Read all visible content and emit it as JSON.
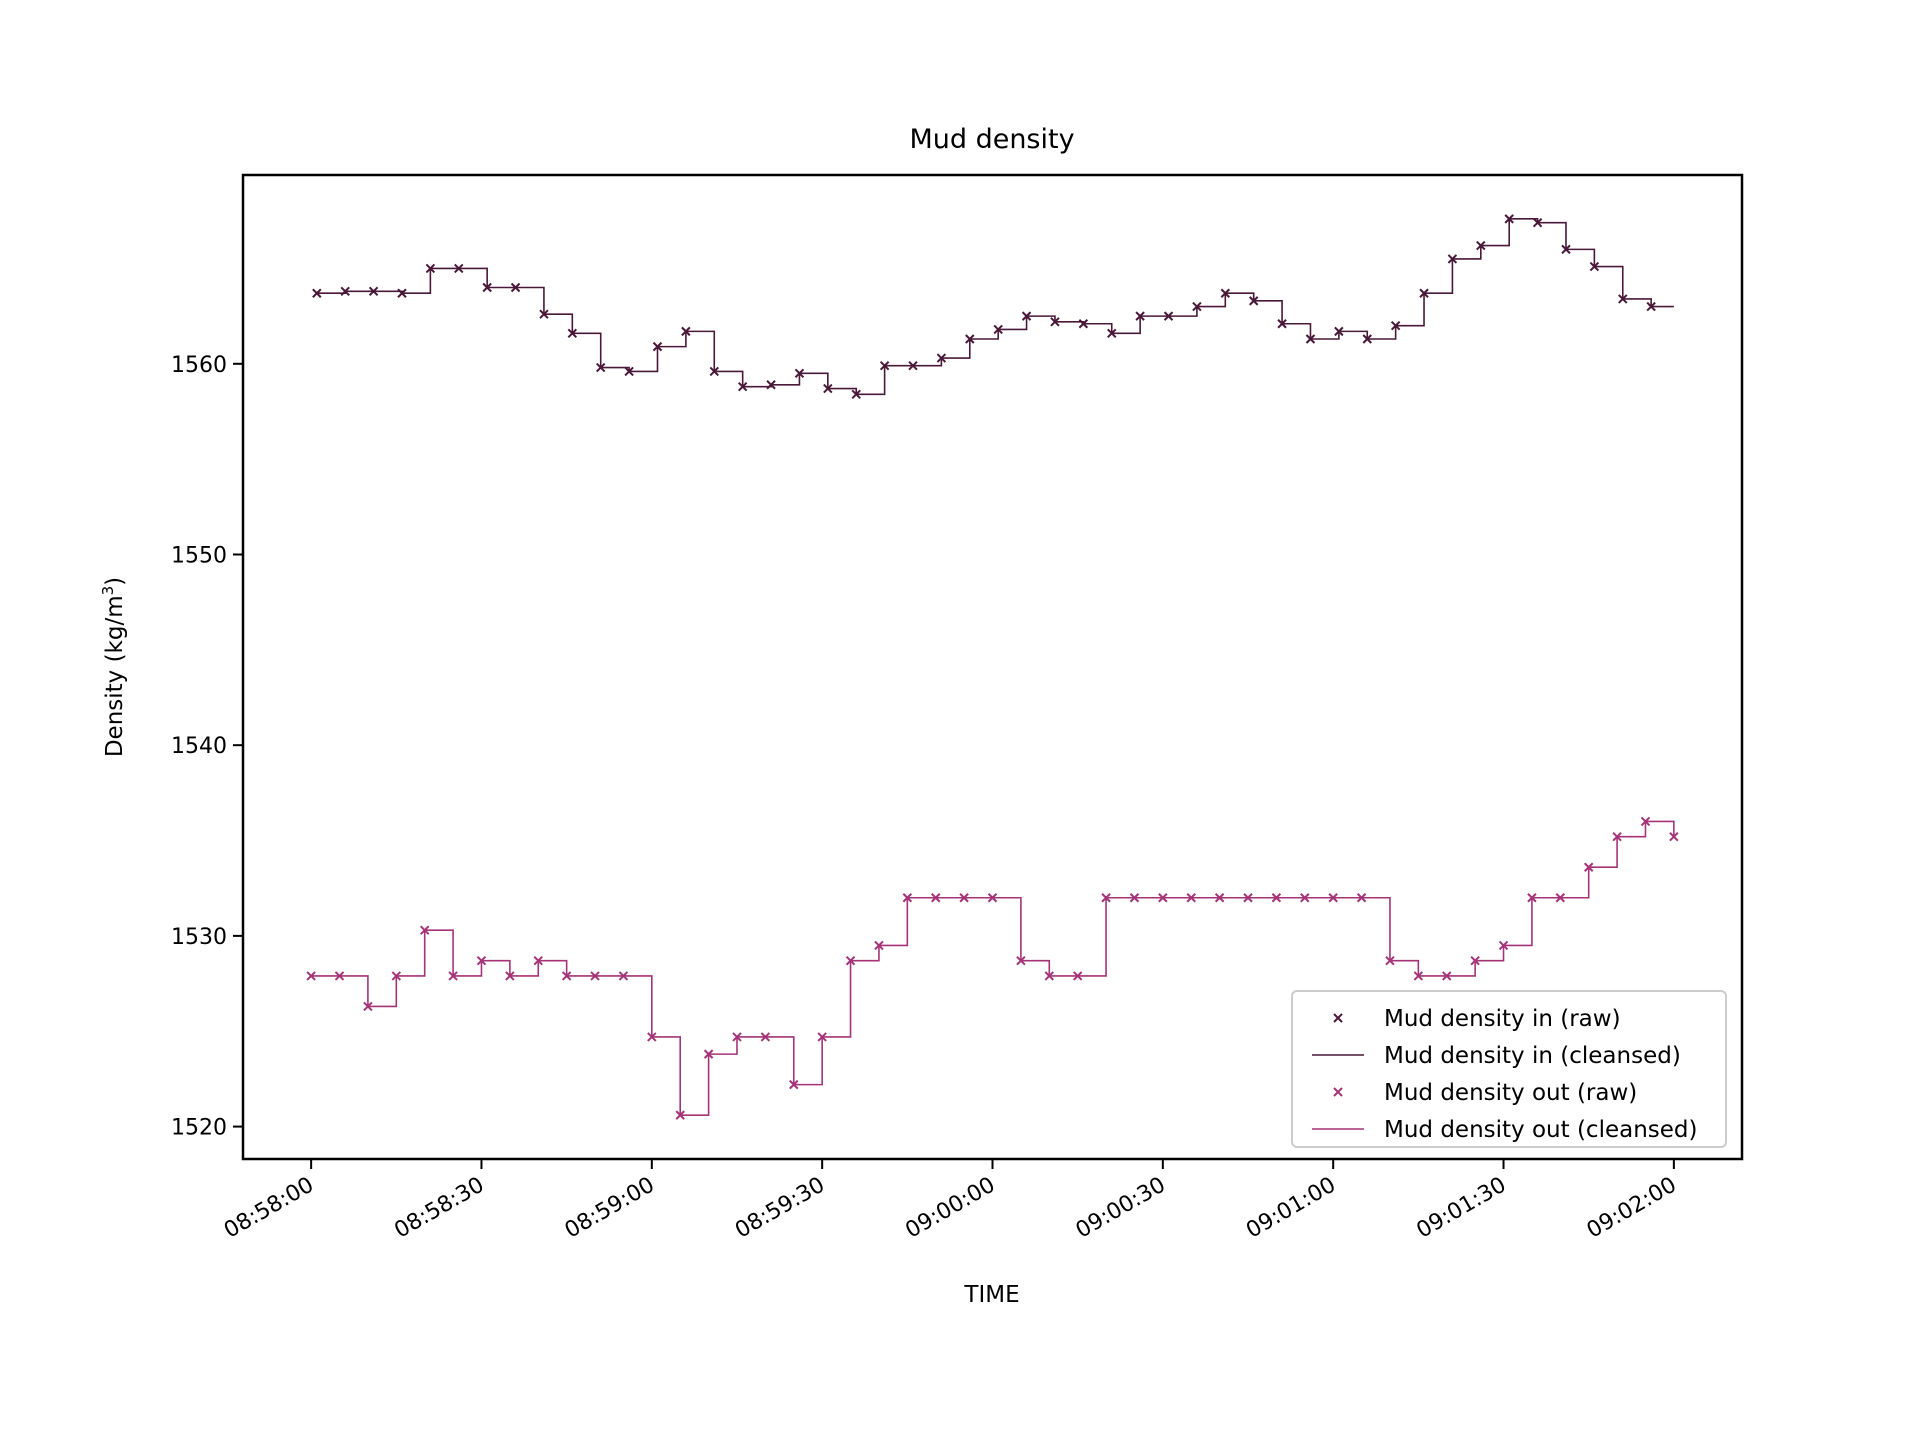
{
  "chart_data": {
    "type": "line",
    "title": "Mud density",
    "xlabel": "TIME",
    "ylabel": "Density (kg/m",
    "ylabel_superscript": "3",
    "ylabel_suffix": ")",
    "xlim": [
      "08:57:48",
      "09:02:12"
    ],
    "ylim": [
      1518.3,
      1569.9
    ],
    "x_ticks": [
      "08:58:00",
      "08:58:30",
      "08:59:00",
      "08:59:30",
      "09:00:00",
      "09:00:30",
      "09:01:00",
      "09:01:30",
      "09:02:00"
    ],
    "y_ticks": [
      1520,
      1530,
      1540,
      1550,
      1560
    ],
    "grid": false,
    "legend_position": "lower-right",
    "legend": [
      "Mud density in (raw)",
      "Mud density in (cleansed)",
      "Mud density out (raw)",
      "Mud density out (cleansed)"
    ],
    "series": [
      {
        "name": "Mud density in (raw)",
        "kind": "markers",
        "color": "#4a1838",
        "x": [
          "08:58:01",
          "08:58:06",
          "08:58:11",
          "08:58:16",
          "08:58:21",
          "08:58:26",
          "08:58:31",
          "08:58:36",
          "08:58:41",
          "08:58:46",
          "08:58:51",
          "08:58:56",
          "08:59:01",
          "08:59:06",
          "08:59:11",
          "08:59:16",
          "08:59:21",
          "08:59:26",
          "08:59:31",
          "08:59:36",
          "08:59:41",
          "08:59:46",
          "08:59:51",
          "08:59:56",
          "09:00:01",
          "09:00:06",
          "09:00:11",
          "09:00:16",
          "09:00:21",
          "09:00:26",
          "09:00:31",
          "09:00:36",
          "09:00:41",
          "09:00:46",
          "09:00:51",
          "09:00:56",
          "09:01:01",
          "09:01:06",
          "09:01:11",
          "09:01:16",
          "09:01:21",
          "09:01:26",
          "09:01:31",
          "09:01:36",
          "09:01:41",
          "09:01:46",
          "09:01:51",
          "09:01:56"
        ],
        "y": [
          1563.7,
          1563.8,
          1563.8,
          1563.7,
          1565.0,
          1565.0,
          1564.0,
          1564.0,
          1562.6,
          1561.6,
          1559.8,
          1559.6,
          1560.9,
          1561.7,
          1559.6,
          1558.8,
          1558.9,
          1559.5,
          1558.7,
          1558.4,
          1559.9,
          1559.9,
          1560.3,
          1561.3,
          1561.8,
          1562.5,
          1562.2,
          1562.1,
          1561.6,
          1562.5,
          1562.5,
          1563.0,
          1563.7,
          1563.3,
          1562.1,
          1561.3,
          1561.7,
          1561.3,
          1562.0,
          1563.7,
          1565.5,
          1566.2,
          1567.6,
          1567.4,
          1566.0,
          1565.1,
          1563.4,
          1563.0
        ]
      },
      {
        "name": "Mud density in (cleansed)",
        "kind": "step",
        "color": "#4a1838",
        "x": [
          "08:58:01",
          "08:58:06",
          "08:58:11",
          "08:58:16",
          "08:58:21",
          "08:58:26",
          "08:58:31",
          "08:58:36",
          "08:58:41",
          "08:58:46",
          "08:58:51",
          "08:58:56",
          "08:59:01",
          "08:59:06",
          "08:59:11",
          "08:59:16",
          "08:59:21",
          "08:59:26",
          "08:59:31",
          "08:59:36",
          "08:59:41",
          "08:59:46",
          "08:59:51",
          "08:59:56",
          "09:00:01",
          "09:00:06",
          "09:00:11",
          "09:00:16",
          "09:00:21",
          "09:00:26",
          "09:00:31",
          "09:00:36",
          "09:00:41",
          "09:00:46",
          "09:00:51",
          "09:00:56",
          "09:01:01",
          "09:01:06",
          "09:01:11",
          "09:01:16",
          "09:01:21",
          "09:01:26",
          "09:01:31",
          "09:01:36",
          "09:01:41",
          "09:01:46",
          "09:01:51",
          "09:01:56",
          "09:02:00"
        ],
        "y": [
          1563.7,
          1563.8,
          1563.8,
          1563.7,
          1565.0,
          1565.0,
          1564.0,
          1564.0,
          1562.6,
          1561.6,
          1559.8,
          1559.6,
          1560.9,
          1561.7,
          1559.6,
          1558.8,
          1558.9,
          1559.5,
          1558.7,
          1558.4,
          1559.9,
          1559.9,
          1560.3,
          1561.3,
          1561.8,
          1562.5,
          1562.2,
          1562.1,
          1561.6,
          1562.5,
          1562.5,
          1563.0,
          1563.7,
          1563.3,
          1562.1,
          1561.3,
          1561.7,
          1561.3,
          1562.0,
          1563.7,
          1565.5,
          1566.2,
          1567.6,
          1567.4,
          1566.0,
          1565.1,
          1563.4,
          1563.0,
          1563.0
        ]
      },
      {
        "name": "Mud density out (raw)",
        "kind": "markers",
        "color": "#a63377",
        "x": [
          "08:58:00",
          "08:58:05",
          "08:58:10",
          "08:58:15",
          "08:58:20",
          "08:58:25",
          "08:58:30",
          "08:58:35",
          "08:58:40",
          "08:58:45",
          "08:58:50",
          "08:58:55",
          "08:59:00",
          "08:59:05",
          "08:59:10",
          "08:59:15",
          "08:59:20",
          "08:59:25",
          "08:59:30",
          "08:59:35",
          "08:59:40",
          "08:59:45",
          "08:59:50",
          "08:59:55",
          "09:00:00",
          "09:00:05",
          "09:00:10",
          "09:00:15",
          "09:00:20",
          "09:00:25",
          "09:00:30",
          "09:00:35",
          "09:00:40",
          "09:00:45",
          "09:00:50",
          "09:00:55",
          "09:01:00",
          "09:01:05",
          "09:01:10",
          "09:01:15",
          "09:01:20",
          "09:01:25",
          "09:01:30",
          "09:01:35",
          "09:01:40",
          "09:01:45",
          "09:01:50",
          "09:01:55",
          "09:02:00"
        ],
        "y": [
          1527.9,
          1527.9,
          1526.3,
          1527.9,
          1530.3,
          1527.9,
          1528.7,
          1527.9,
          1528.7,
          1527.9,
          1527.9,
          1527.9,
          1524.7,
          1520.6,
          1523.8,
          1524.7,
          1524.7,
          1522.2,
          1524.7,
          1528.7,
          1529.5,
          1532.0,
          1532.0,
          1532.0,
          1532.0,
          1528.7,
          1527.9,
          1527.9,
          1532.0,
          1532.0,
          1532.0,
          1532.0,
          1532.0,
          1532.0,
          1532.0,
          1532.0,
          1532.0,
          1532.0,
          1528.7,
          1527.9,
          1527.9,
          1528.7,
          1529.5,
          1532.0,
          1532.0,
          1533.6,
          1535.2,
          1536.0,
          1535.2
        ]
      },
      {
        "name": "Mud density out (cleansed)",
        "kind": "step",
        "color": "#a63377",
        "x": [
          "08:58:00",
          "08:58:05",
          "08:58:10",
          "08:58:15",
          "08:58:20",
          "08:58:25",
          "08:58:30",
          "08:58:35",
          "08:58:40",
          "08:58:45",
          "08:58:50",
          "08:58:55",
          "08:59:00",
          "08:59:05",
          "08:59:10",
          "08:59:15",
          "08:59:20",
          "08:59:25",
          "08:59:30",
          "08:59:35",
          "08:59:40",
          "08:59:45",
          "08:59:50",
          "08:59:55",
          "09:00:00",
          "09:00:05",
          "09:00:10",
          "09:00:15",
          "09:00:20",
          "09:00:25",
          "09:00:30",
          "09:00:35",
          "09:00:40",
          "09:00:45",
          "09:00:50",
          "09:00:55",
          "09:01:00",
          "09:01:05",
          "09:01:10",
          "09:01:15",
          "09:01:20",
          "09:01:25",
          "09:01:30",
          "09:01:35",
          "09:01:40",
          "09:01:45",
          "09:01:50",
          "09:01:55",
          "09:02:00"
        ],
        "y": [
          1527.9,
          1527.9,
          1526.3,
          1527.9,
          1530.3,
          1527.9,
          1528.7,
          1527.9,
          1528.7,
          1527.9,
          1527.9,
          1527.9,
          1524.7,
          1520.6,
          1523.8,
          1524.7,
          1524.7,
          1522.2,
          1524.7,
          1528.7,
          1529.5,
          1532.0,
          1532.0,
          1532.0,
          1532.0,
          1528.7,
          1527.9,
          1527.9,
          1532.0,
          1532.0,
          1532.0,
          1532.0,
          1532.0,
          1532.0,
          1532.0,
          1532.0,
          1532.0,
          1532.0,
          1528.7,
          1527.9,
          1527.9,
          1528.7,
          1529.5,
          1532.0,
          1532.0,
          1533.6,
          1535.2,
          1536.0,
          1535.2
        ]
      }
    ]
  }
}
